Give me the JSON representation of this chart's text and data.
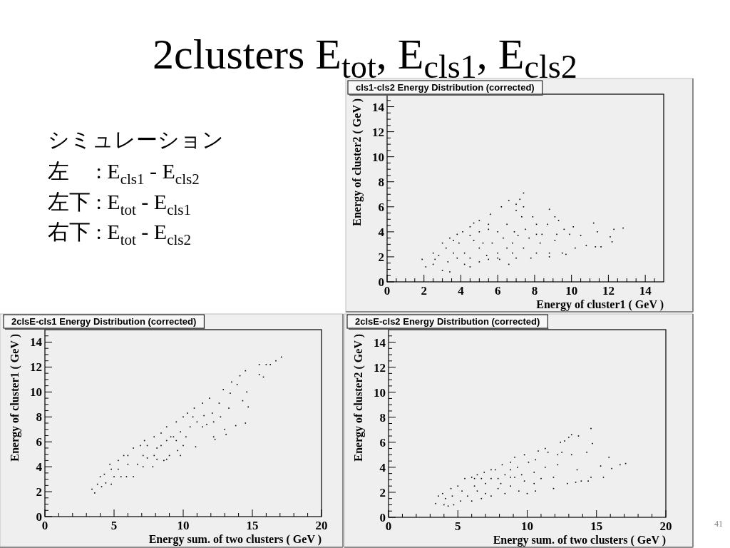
{
  "chart_data": [
    {
      "type": "other",
      "title": "2clusters E$_{tot}$, E$_{cls1}$, E$_{cls2}$",
      "annotations": [
        "シミュレーション",
        "左　 : E$_{cls1}$ - E$_{cls2}$",
        "左下 : E$_{tot}$ - E$_{cls1}$",
        "右下 : E$_{tot}$ - E$_{cls2}$",
        "41"
      ]
    },
    {
      "type": "scatter",
      "title": "cls1-cls2 Energy Distribution (corrected)",
      "xlabel": "Energy of cluster1 ( GeV )",
      "ylabel": "Energy of cluster2 ( GeV )",
      "color": "#000000",
      "marker": "square",
      "xlim": [
        0,
        15
      ],
      "ylim": [
        0,
        15
      ],
      "xticks": [
        0,
        {
          "value": 0.5,
          "label": null
        },
        {
          "value": 1,
          "label": null
        },
        {
          "value": 1.5,
          "label": null
        },
        2,
        {
          "value": 2.5,
          "label": null
        },
        {
          "value": 3,
          "label": null
        },
        {
          "value": 3.5,
          "label": null
        },
        4,
        {
          "value": 4.5,
          "label": null
        },
        {
          "value": 5,
          "label": null
        },
        {
          "value": 5.5,
          "label": null
        },
        6,
        {
          "value": 6.5,
          "label": null
        },
        {
          "value": 7,
          "label": null
        },
        {
          "value": 7.5,
          "label": null
        },
        8,
        {
          "value": 8.5,
          "label": null
        },
        {
          "value": 9,
          "label": null
        },
        {
          "value": 9.5,
          "label": null
        },
        10,
        {
          "value": 10.5,
          "label": null
        },
        {
          "value": 11,
          "label": null
        },
        {
          "value": 11.5,
          "label": null
        },
        12,
        {
          "value": 12.5,
          "label": null
        },
        {
          "value": 13,
          "label": null
        },
        {
          "value": 13.5,
          "label": null
        },
        14,
        {
          "value": 14.5,
          "label": null
        }
      ],
      "yticks": [
        0,
        {
          "value": 0.5,
          "label": null
        },
        {
          "value": 1,
          "label": null
        },
        {
          "value": 1.5,
          "label": null
        },
        2,
        {
          "value": 2.5,
          "label": null
        },
        {
          "value": 3,
          "label": null
        },
        {
          "value": 3.5,
          "label": null
        },
        4,
        {
          "value": 4.5,
          "label": null
        },
        {
          "value": 5,
          "label": null
        },
        {
          "value": 5.5,
          "label": null
        },
        6,
        {
          "value": 6.5,
          "label": null
        },
        {
          "value": 7,
          "label": null
        },
        {
          "value": 7.5,
          "label": null
        },
        8,
        {
          "value": 8.5,
          "label": null
        },
        {
          "value": 9,
          "label": null
        },
        {
          "value": 9.5,
          "label": null
        },
        10,
        {
          "value": 10.5,
          "label": null
        },
        {
          "value": 11,
          "label": null
        },
        {
          "value": 11.5,
          "label": null
        },
        12,
        {
          "value": 12.5,
          "label": null
        },
        {
          "value": 13,
          "label": null
        },
        {
          "value": 13.5,
          "label": null
        },
        14,
        {
          "value": 14.5,
          "label": null
        }
      ],
      "x": [
        1.9,
        2.1,
        2.5,
        2.6,
        3.0,
        3.4,
        3.0,
        3.4,
        3.8,
        4.1,
        4.5,
        4.7,
        5.0,
        4.5,
        5.0,
        5.5,
        6.0,
        6.6,
        7.0,
        5.6,
        6.2,
        6.6,
        7.0,
        7.2,
        7.4,
        7.4,
        7.0,
        7.3,
        7.9,
        8.8,
        9.1,
        9.3,
        8.7,
        10.1,
        11.2,
        11.4,
        12.3,
        12.8,
        12.1,
        12.2,
        11.3,
        11.6,
        10.8,
        10.2,
        10.5,
        9.9,
        9.7,
        9.5,
        8.8,
        8.8,
        8.3,
        8.1,
        7.7,
        7.5,
        6.8,
        6.5,
        6.3,
        6.0,
        5.7,
        5.5,
        5.2,
        5.0,
        4.7,
        4.5,
        4.2,
        3.9,
        3.8,
        3.6,
        3.3,
        3.2,
        2.8,
        2.5,
        4.2,
        5.4,
        6.1,
        6.8,
        7.4,
        7.8,
        8.1,
        8.4,
        8.1,
        6.5,
        6.0,
        5.0,
        4.5,
        3.6,
        5.5,
        6.9,
        7.1,
        9.1,
        9.2,
        9.6
      ],
      "values": [
        1.8,
        1.2,
        1.4,
        1.8,
        0.9,
        0.8,
        3.1,
        3.5,
        3.8,
        4.0,
        4.4,
        4.7,
        4.9,
        1.2,
        1.6,
        1.8,
        1.9,
        1.4,
        1.9,
        5.4,
        6.0,
        6.5,
        6.2,
        6.6,
        7.1,
        6.0,
        5.7,
        5.2,
        5.2,
        5.8,
        5.2,
        4.9,
        4.6,
        4.4,
        4.7,
        4.0,
        4.2,
        4.3,
        3.6,
        3.2,
        2.8,
        2.8,
        2.9,
        2.7,
        3.7,
        3.8,
        2.2,
        2.3,
        2.0,
        2.3,
        3.1,
        3.8,
        3.5,
        4.2,
        3.1,
        2.7,
        3.5,
        2.3,
        3.1,
        4.2,
        3.1,
        2.7,
        3.3,
        1.9,
        2.3,
        3.1,
        1.9,
        2.3,
        1.6,
        2.7,
        2.1,
        2.3,
        1.4,
        2.1,
        1.8,
        2.3,
        2.7,
        1.9,
        2.3,
        3.8,
        4.6,
        4.6,
        4.0,
        4.0,
        3.7,
        3.3,
        4.6,
        4.0,
        3.7,
        3.3,
        3.8,
        4.2
      ]
    },
    {
      "type": "scatter",
      "title": "2clsE-cls1 Energy Distribution (corrected)",
      "xlabel": "Energy sum. of two clusters ( GeV )",
      "ylabel": "Energy of cluster1 ( GeV )",
      "color": "#000000",
      "marker": "square",
      "xlim": [
        0,
        20
      ],
      "ylim": [
        0,
        15
      ],
      "xticks": [
        0,
        {
          "value": 1,
          "label": null
        },
        {
          "value": 2,
          "label": null
        },
        {
          "value": 3,
          "label": null
        },
        {
          "value": 4,
          "label": null
        },
        5,
        {
          "value": 6,
          "label": null
        },
        {
          "value": 7,
          "label": null
        },
        {
          "value": 8,
          "label": null
        },
        {
          "value": 9,
          "label": null
        },
        10,
        {
          "value": 11,
          "label": null
        },
        {
          "value": 12,
          "label": null
        },
        {
          "value": 13,
          "label": null
        },
        {
          "value": 14,
          "label": null
        },
        15,
        {
          "value": 16,
          "label": null
        },
        {
          "value": 17,
          "label": null
        },
        {
          "value": 18,
          "label": null
        },
        {
          "value": 19,
          "label": null
        },
        20
      ],
      "yticks": [
        0,
        {
          "value": 0.5,
          "label": null
        },
        {
          "value": 1,
          "label": null
        },
        {
          "value": 1.5,
          "label": null
        },
        2,
        {
          "value": 2.5,
          "label": null
        },
        {
          "value": 3,
          "label": null
        },
        {
          "value": 3.5,
          "label": null
        },
        4,
        {
          "value": 4.5,
          "label": null
        },
        {
          "value": 5,
          "label": null
        },
        {
          "value": 5.5,
          "label": null
        },
        6,
        {
          "value": 6.5,
          "label": null
        },
        {
          "value": 7,
          "label": null
        },
        {
          "value": 7.5,
          "label": null
        },
        8,
        {
          "value": 8.5,
          "label": null
        },
        {
          "value": 9,
          "label": null
        },
        {
          "value": 9.5,
          "label": null
        },
        10,
        {
          "value": 10.5,
          "label": null
        },
        {
          "value": 11,
          "label": null
        },
        {
          "value": 11.5,
          "label": null
        },
        12,
        {
          "value": 12.5,
          "label": null
        },
        {
          "value": 13,
          "label": null
        },
        {
          "value": 13.5,
          "label": null
        },
        14,
        {
          "value": 14.5,
          "label": null
        }
      ],
      "x": [
        3.4,
        3.6,
        3.8,
        4.0,
        4.3,
        4.4,
        4.8,
        5.0,
        5.3,
        5.7,
        6.0,
        5.9,
        6.4,
        6.4,
        6.9,
        7.2,
        7.4,
        7.8,
        7.9,
        8.4,
        8.8,
        8.6,
        9.0,
        9.5,
        9.3,
        9.6,
        10.0,
        10.0,
        10.3,
        10.8,
        10.9,
        11.0,
        11.4,
        11.7,
        11.9,
        12.2,
        12.3,
        12.6,
        12.7,
        12.9,
        13.0,
        13.1,
        13.3,
        13.4,
        13.5,
        13.8,
        13.9,
        14.1,
        14.3,
        14.5,
        14.6,
        14.5,
        14.7,
        15.5,
        15.5,
        15.8,
        16.0,
        16.7,
        17.1,
        16.3,
        7.1,
        6.7,
        7.4,
        8.1,
        8.4,
        9.1,
        9.8,
        10.5,
        11.5,
        12.1,
        7.1,
        5.3,
        6.0,
        4.7,
        7.9,
        8.8,
        9.5,
        10.2,
        10.7,
        11.4,
        12.2,
        8.1,
        8.8,
        9.8,
        4.1,
        4.8,
        5.5
      ],
      "values": [
        2.2,
        1.9,
        2.6,
        3.2,
        3.4,
        2.7,
        3.8,
        3.2,
        4.5,
        4.9,
        4.2,
        3.2,
        3.2,
        5.5,
        5.7,
        6.1,
        4.7,
        4.0,
        6.4,
        6.7,
        7.2,
        4.5,
        4.9,
        7.6,
        6.4,
        5.3,
        8.0,
        5.7,
        8.3,
        8.7,
        5.6,
        7.6,
        9.1,
        7.4,
        9.5,
        6.4,
        6.2,
        9.1,
        8.0,
        10.2,
        7.0,
        6.6,
        8.7,
        9.9,
        10.8,
        7.3,
        10.6,
        11.3,
        9.3,
        11.7,
        10.0,
        7.5,
        8.8,
        12.2,
        11.4,
        11.2,
        12.2,
        12.5,
        12.8,
        12.2,
        4.9,
        4.2,
        5.7,
        5.5,
        5.7,
        6.4,
        6.8,
        7.2,
        8.1,
        8.3,
        4.0,
        3.8,
        4.9,
        4.2,
        4.9,
        6.1,
        6.1,
        6.4,
        8.0,
        7.2,
        7.6,
        4.6,
        4.6,
        4.9,
        2.4,
        2.6,
        3.2
      ]
    },
    {
      "type": "scatter",
      "title": "2clsE-cls2 Energy Distribution (corrected)",
      "xlabel": "Energy sum. of two clusters ( GeV )",
      "ylabel": "Energy of cluster2 ( GeV )",
      "color": "#000000",
      "marker": "square",
      "xlim": [
        0,
        20
      ],
      "ylim": [
        0,
        15
      ],
      "xticks": [
        0,
        {
          "value": 1,
          "label": null
        },
        {
          "value": 2,
          "label": null
        },
        {
          "value": 3,
          "label": null
        },
        {
          "value": 4,
          "label": null
        },
        5,
        {
          "value": 6,
          "label": null
        },
        {
          "value": 7,
          "label": null
        },
        {
          "value": 8,
          "label": null
        },
        {
          "value": 9,
          "label": null
        },
        10,
        {
          "value": 11,
          "label": null
        },
        {
          "value": 12,
          "label": null
        },
        {
          "value": 13,
          "label": null
        },
        {
          "value": 14,
          "label": null
        },
        15,
        {
          "value": 16,
          "label": null
        },
        {
          "value": 17,
          "label": null
        },
        {
          "value": 18,
          "label": null
        },
        {
          "value": 19,
          "label": null
        },
        20
      ],
      "yticks": [
        0,
        {
          "value": 0.5,
          "label": null
        },
        {
          "value": 1,
          "label": null
        },
        {
          "value": 1.5,
          "label": null
        },
        2,
        {
          "value": 2.5,
          "label": null
        },
        {
          "value": 3,
          "label": null
        },
        {
          "value": 3.5,
          "label": null
        },
        4,
        {
          "value": 4.5,
          "label": null
        },
        {
          "value": 5,
          "label": null
        },
        {
          "value": 5.5,
          "label": null
        },
        6,
        {
          "value": 6.5,
          "label": null
        },
        {
          "value": 7,
          "label": null
        },
        {
          "value": 7.5,
          "label": null
        },
        8,
        {
          "value": 8.5,
          "label": null
        },
        {
          "value": 9,
          "label": null
        },
        {
          "value": 9.5,
          "label": null
        },
        10,
        {
          "value": 10.5,
          "label": null
        },
        {
          "value": 11,
          "label": null
        },
        {
          "value": 11.5,
          "label": null
        },
        12,
        {
          "value": 12.5,
          "label": null
        },
        {
          "value": 13,
          "label": null
        },
        {
          "value": 13.5,
          "label": null
        },
        14,
        {
          "value": 14.5,
          "label": null
        }
      ],
      "x": [
        3.4,
        3.6,
        3.9,
        4.0,
        4.3,
        4.7,
        4.5,
        5.0,
        5.2,
        5.5,
        6.0,
        6.4,
        6.0,
        6.9,
        7.4,
        7.7,
        6.7,
        7.4,
        8.2,
        8.8,
        9.1,
        9.8,
        8.4,
        9.4,
        10.0,
        10.6,
        10.8,
        11.3,
        11.5,
        11.9,
        12.2,
        12.4,
        12.5,
        12.7,
        13.0,
        13.2,
        13.7,
        12.9,
        13.5,
        13.9,
        14.3,
        14.4,
        14.6,
        14.7,
        14.6,
        15.5,
        15.9,
        16.1,
        16.7,
        17.1,
        15.3,
        5.3,
        6.2,
        7.0,
        7.9,
        8.8,
        9.6,
        10.5,
        11.3,
        11.9,
        7.0,
        7.9,
        8.8,
        9.8,
        10.5,
        11.0,
        6.4,
        5.7,
        4.6,
        4.1,
        7.4,
        8.4,
        9.3,
        10.1,
        10.6,
        9.1,
        12.2,
        13.2,
        13.6,
        8.8,
        6.7,
        6.2,
        8.1
      ],
      "values": [
        1.1,
        1.7,
        1.9,
        1.0,
        0.9,
        1.0,
        2.3,
        2.5,
        1.3,
        3.1,
        3.2,
        3.4,
        1.3,
        3.6,
        3.8,
        3.8,
        1.5,
        1.7,
        4.2,
        4.4,
        4.8,
        5.0,
        1.9,
        2.1,
        1.9,
        2.1,
        5.3,
        5.5,
        5.2,
        2.3,
        5.0,
        6.0,
        5.2,
        6.1,
        6.4,
        6.6,
        6.5,
        2.7,
        2.8,
        2.9,
        5.2,
        2.9,
        7.1,
        5.9,
        3.2,
        3.2,
        4.8,
        3.9,
        4.2,
        4.3,
        4.1,
        2.1,
        2.5,
        2.7,
        3.1,
        3.2,
        3.4,
        3.6,
        4.0,
        3.2,
        1.9,
        2.3,
        2.5,
        2.9,
        2.7,
        3.1,
        2.1,
        1.7,
        1.7,
        1.5,
        3.1,
        3.4,
        4.0,
        4.4,
        4.6,
        3.2,
        4.2,
        5.0,
        3.8,
        3.8,
        3.1,
        3.1,
        2.7
      ]
    }
  ]
}
